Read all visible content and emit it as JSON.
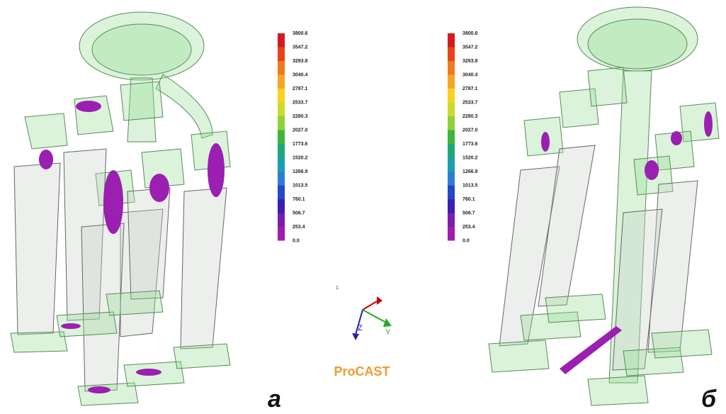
{
  "legends": [
    {
      "ticks": [
        "3800.6",
        "3547.2",
        "3293.8",
        "3040.4",
        "2787.1",
        "2533.7",
        "2280.3",
        "2027.0",
        "1773.6",
        "1520.2",
        "1266.9",
        "1013.5",
        "760.1",
        "506.7",
        "253.4",
        "0.0"
      ],
      "colors": [
        "#d7191c",
        "#e8421a",
        "#f07a1e",
        "#f5a623",
        "#f7d21e",
        "#c9dc2b",
        "#8fd13a",
        "#3fb53a",
        "#1ea87a",
        "#1a9fb0",
        "#2a7fd4",
        "#2448c8",
        "#3a20b0",
        "#7a1cb0",
        "#a01cb0"
      ]
    },
    {
      "ticks": [
        "3800.6",
        "3547.2",
        "3293.8",
        "3040.4",
        "2787.1",
        "2533.7",
        "2280.3",
        "2027.0",
        "1773.6",
        "1520.2",
        "1266.9",
        "1013.5",
        "760.1",
        "506.7",
        "253.4",
        "0.0"
      ],
      "colors": [
        "#d7191c",
        "#e8421a",
        "#f07a1e",
        "#f5a623",
        "#f7d21e",
        "#c9dc2b",
        "#8fd13a",
        "#3fb53a",
        "#1ea87a",
        "#1a9fb0",
        "#2a7fd4",
        "#2448c8",
        "#3a20b0",
        "#7a1cb0",
        "#a01cb0"
      ]
    }
  ],
  "axes": {
    "x": "1",
    "z": "Z",
    "y": "Y"
  },
  "brand": "ProCAST",
  "panel_a": "а",
  "panel_b": "б"
}
